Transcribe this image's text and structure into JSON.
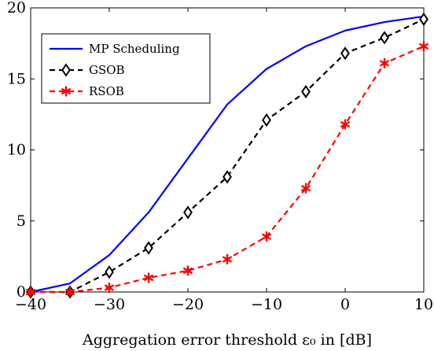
{
  "chart_data": {
    "type": "line",
    "title": "",
    "xlabel": "Aggregation error threshold ε₀ in [dB]",
    "ylabel": "",
    "xlim": [
      -40,
      10
    ],
    "ylim": [
      0,
      20
    ],
    "xticks": [
      -40,
      -30,
      -20,
      -10,
      0,
      10
    ],
    "xtick_labels": [
      "−40",
      "−30",
      "−20",
      "−10",
      "0",
      "10"
    ],
    "yticks": [
      0,
      5,
      10,
      15,
      20
    ],
    "ytick_labels": [
      "0",
      "5",
      "10",
      "15",
      "20"
    ],
    "grid": false,
    "legend_position": "top-left",
    "series": [
      {
        "name": "MP Scheduling",
        "color": "#0000ff",
        "dash": "solid",
        "marker": "none",
        "x": [
          -40,
          -35,
          -30,
          -25,
          -20,
          -15,
          -10,
          -5,
          0,
          5,
          10
        ],
        "y": [
          0.0,
          0.6,
          2.6,
          5.6,
          9.4,
          13.2,
          15.7,
          17.3,
          18.4,
          19.0,
          19.4
        ]
      },
      {
        "name": "GSOB",
        "color": "#000000",
        "dash": "dashed",
        "marker": "diamond",
        "x": [
          -40,
          -35,
          -30,
          -25,
          -20,
          -15,
          -10,
          -5,
          0,
          5,
          10
        ],
        "y": [
          0.0,
          0.0,
          1.4,
          3.1,
          5.6,
          8.1,
          12.1,
          14.1,
          16.8,
          17.9,
          19.2
        ]
      },
      {
        "name": "RSOB",
        "color": "#ff0000",
        "dash": "dashed",
        "marker": "asterisk",
        "x": [
          -40,
          -35,
          -30,
          -25,
          -20,
          -15,
          -10,
          -5,
          0,
          5,
          10
        ],
        "y": [
          0.0,
          0.0,
          0.3,
          1.0,
          1.5,
          2.3,
          3.9,
          7.3,
          11.8,
          16.1,
          17.3
        ]
      }
    ]
  }
}
